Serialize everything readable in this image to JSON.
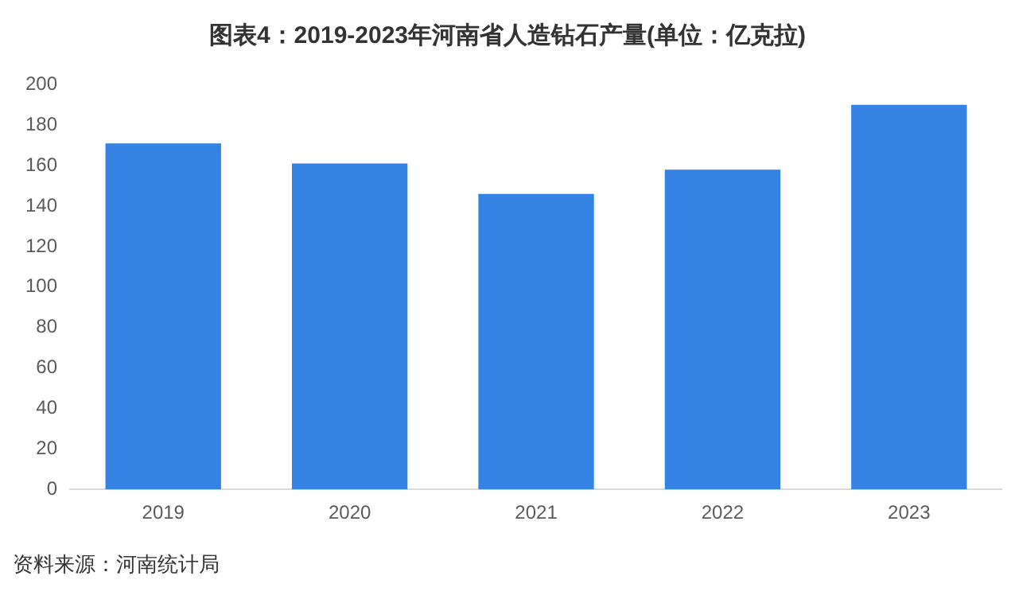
{
  "chart_data": {
    "type": "bar",
    "title": "图表4：2019-2023年河南省人造钻石产量(单位：亿克拉)",
    "categories": [
      "2019",
      "2020",
      "2021",
      "2022",
      "2023"
    ],
    "values": [
      171,
      161,
      146,
      158,
      190
    ],
    "color": "#3482e4",
    "ylim": [
      0,
      200
    ],
    "yticks": [
      0,
      20,
      40,
      60,
      80,
      100,
      120,
      140,
      160,
      180,
      200
    ],
    "grid": false,
    "legend": false,
    "annotations": [
      "资料来源：河南统计局"
    ]
  }
}
